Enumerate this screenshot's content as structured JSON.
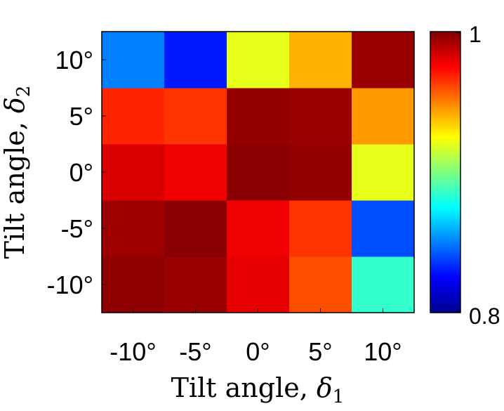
{
  "chart_data": {
    "type": "heatmap",
    "x_categories": [
      "-10°",
      "-5°",
      "0°",
      "5°",
      "10°"
    ],
    "y_categories": [
      "-10°",
      "-5°",
      "0°",
      "5°",
      "10°"
    ],
    "xlabel_text": "Tilt angle, ",
    "xlabel_symbol": "δ",
    "xlabel_subscript": "1",
    "ylabel_text": "Tilt angle, ",
    "ylabel_symbol": "δ",
    "ylabel_subscript": "2",
    "values": [
      [
        0.997,
        0.995,
        0.98,
        0.96,
        0.885
      ],
      [
        0.994,
        0.998,
        0.978,
        0.965,
        0.84
      ],
      [
        0.982,
        0.978,
        0.998,
        0.996,
        0.92
      ],
      [
        0.968,
        0.965,
        0.996,
        0.995,
        0.945
      ],
      [
        0.85,
        0.83,
        0.92,
        0.94,
        0.995
      ]
    ],
    "colorbar": {
      "min": 0.8,
      "max": 1,
      "min_label": "0.8",
      "max_label": "1",
      "colormap": "jet"
    }
  }
}
